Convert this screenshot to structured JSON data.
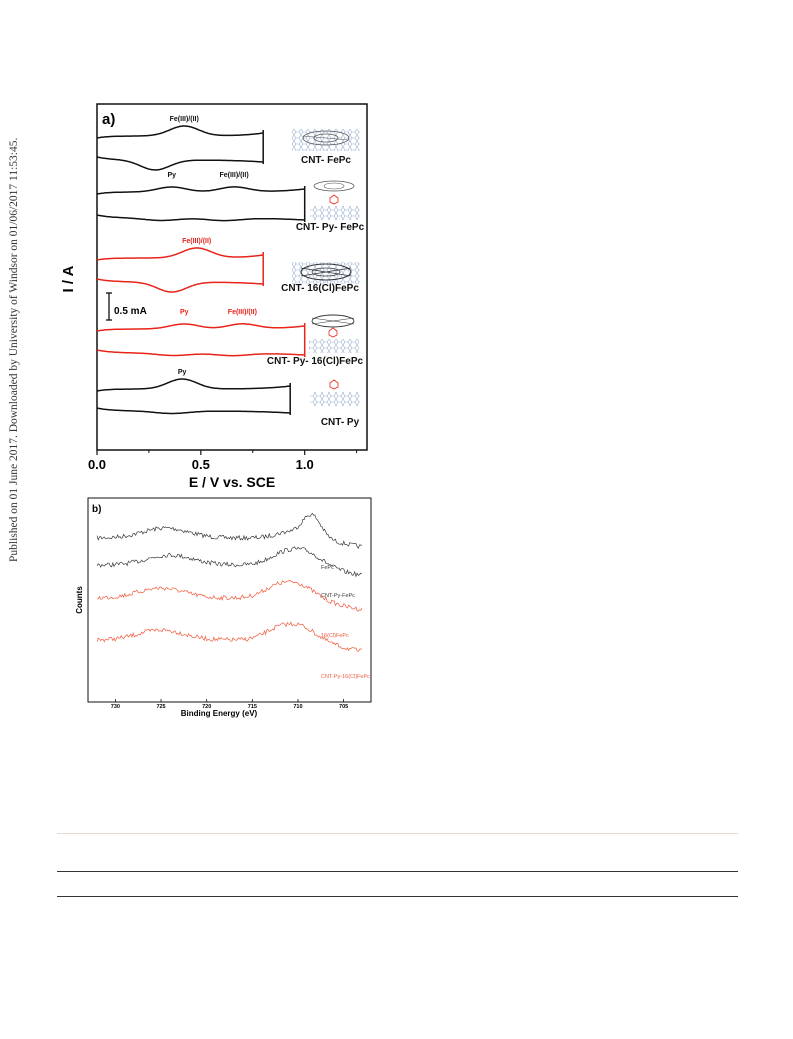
{
  "sidebar_text": "Published on 01 June 2017. Downloaded by University of Windsor on 01/06/2017 11:53:45.",
  "colors": {
    "black_trace": "#111111",
    "red_trace": "#e8241b",
    "gray_trace": "#3a3a3a",
    "xps_red": "#f05a3c",
    "rule_tan": "#e6dccb",
    "schematic_blue": "#9ab0d0"
  },
  "chart_data": [
    {
      "type": "line",
      "panel_label": "a)",
      "xlabel": "E / V vs. SCE",
      "ylabel": "I / A",
      "xlim": [
        0.0,
        1.3
      ],
      "xticks": [
        "0.0",
        "0.5",
        "1.0"
      ],
      "scale_bar_label": "0.5 mA",
      "series": [
        {
          "name": "CNT- FePc",
          "color": "#111111",
          "peak_labels": [
            {
              "text": "Fe(III)/(II)",
              "x": 0.42
            }
          ],
          "x_max": 0.8,
          "anodic_peak_E": 0.42,
          "cathodic_peak_E": 0.28
        },
        {
          "name": "CNT- Py- FePc",
          "color": "#111111",
          "peak_labels": [
            {
              "text": "Py",
              "x": 0.36
            },
            {
              "text": "Fe(III)/(II)",
              "x": 0.66
            }
          ],
          "x_max": 1.0,
          "anodic_peak_E": [
            0.36,
            0.66
          ]
        },
        {
          "name": "CNT- 16(Cl)FePc",
          "color": "#e8241b",
          "peak_labels": [
            {
              "text": "Fe(III)/(II)",
              "x": 0.48
            }
          ],
          "x_max": 0.8,
          "anodic_peak_E": 0.48,
          "cathodic_peak_E": 0.36
        },
        {
          "name": "CNT- Py- 16(Cl)FePc",
          "color": "#e8241b",
          "peak_labels": [
            {
              "text": "Py",
              "x": 0.42
            },
            {
              "text": "Fe(III)/(II)",
              "x": 0.7
            }
          ],
          "x_max": 1.0,
          "anodic_peak_E": [
            0.42,
            0.7
          ]
        },
        {
          "name": "CNT- Py",
          "color": "#111111",
          "peak_labels": [
            {
              "text": "Py",
              "x": 0.41
            }
          ],
          "x_max": 0.93,
          "anodic_peak_E": 0.41
        }
      ]
    },
    {
      "type": "line",
      "panel_label": "b)",
      "xlabel": "Binding Energy (eV)",
      "ylabel": "Counts",
      "xlim": [
        733,
        702
      ],
      "xticks": [
        "730",
        "725",
        "720",
        "715",
        "710",
        "705"
      ],
      "series": [
        {
          "name": "FePc",
          "color": "#3a3a3a",
          "peaks_eV": [
            724.5,
            708.5
          ]
        },
        {
          "name": "CNT-Py-FePc",
          "color": "#3a3a3a",
          "peaks_eV": [
            724.0,
            709.5
          ]
        },
        {
          "name": "16(Cl)FePc",
          "color": "#f05a3c",
          "peaks_eV": [
            725.0,
            710.2
          ]
        },
        {
          "name": "CNT-Py-16(Cl)FePc",
          "color": "#f05a3c",
          "peaks_eV": [
            725.0,
            710.0
          ]
        }
      ]
    }
  ]
}
